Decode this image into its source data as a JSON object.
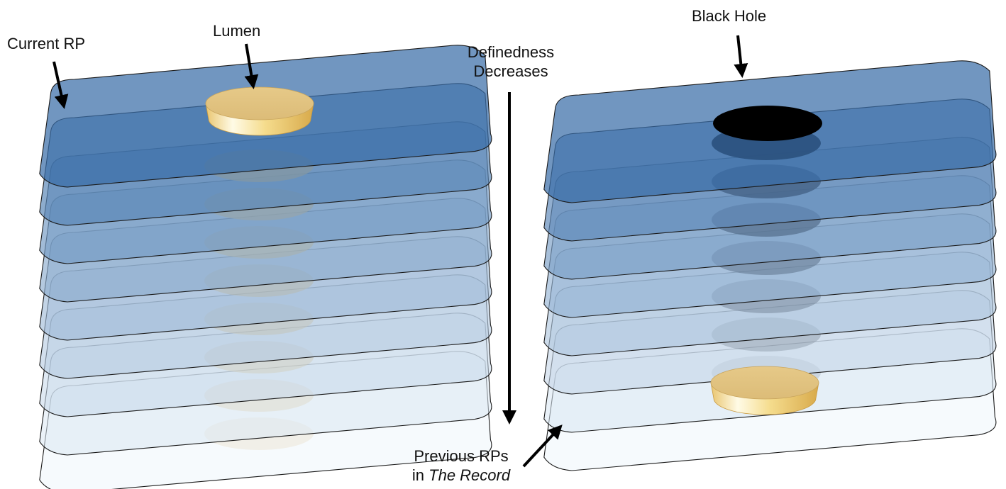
{
  "labels": {
    "current_rp": "Current RP",
    "lumen": "Lumen",
    "definedness_line1": "Definedness",
    "definedness_line2": "Decreases",
    "black_hole": "Black Hole",
    "previous_rps_line1": "Previous RPs",
    "previous_rps_prefix": "in ",
    "previous_rps_italic": "The Record"
  },
  "colors": {
    "layer_outline": "#1a1a1a",
    "top_layer": "#3a6ea8",
    "bottom_layer": "#eef6fc",
    "lumen_top": "#e8c98a",
    "lumen_side": "#f3d98e",
    "black_hole": "#000000",
    "arrow": "#000000"
  },
  "stacks": [
    {
      "name": "lumen-stack",
      "layers": 9,
      "disc_kind": "lumen"
    },
    {
      "name": "black-hole-stack",
      "layers": 8,
      "disc_kind": "black-hole"
    }
  ]
}
